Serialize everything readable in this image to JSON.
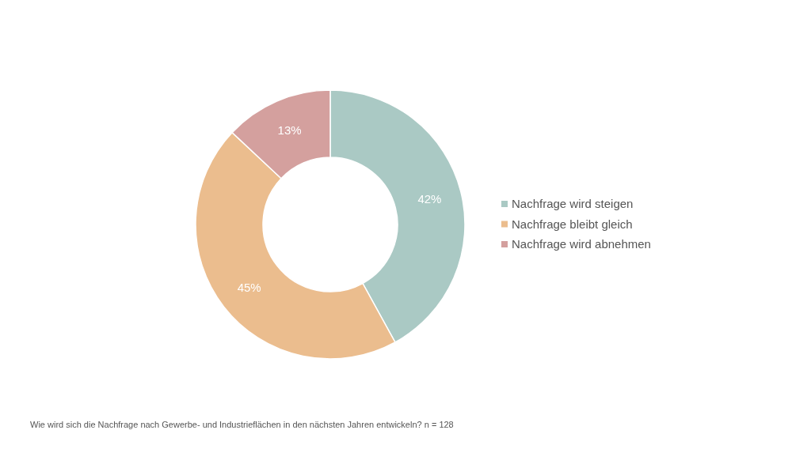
{
  "chart_data": {
    "type": "donut",
    "categories": [
      "Nachfrage wird steigen",
      "Nachfrage bleibt gleich",
      "Nachfrage wird abnehmen"
    ],
    "values": [
      42,
      45,
      13
    ],
    "colors": [
      "#aac9c4",
      "#ebbd8e",
      "#d4a09e"
    ],
    "value_labels": [
      "42%",
      "45%",
      "13%"
    ],
    "legend": "right",
    "annotations": [
      "Wie wird sich die Nachfrage nach Gewerbe- und Industrieflächen in den nächsten Jahren entwickeln? n = 128"
    ]
  }
}
